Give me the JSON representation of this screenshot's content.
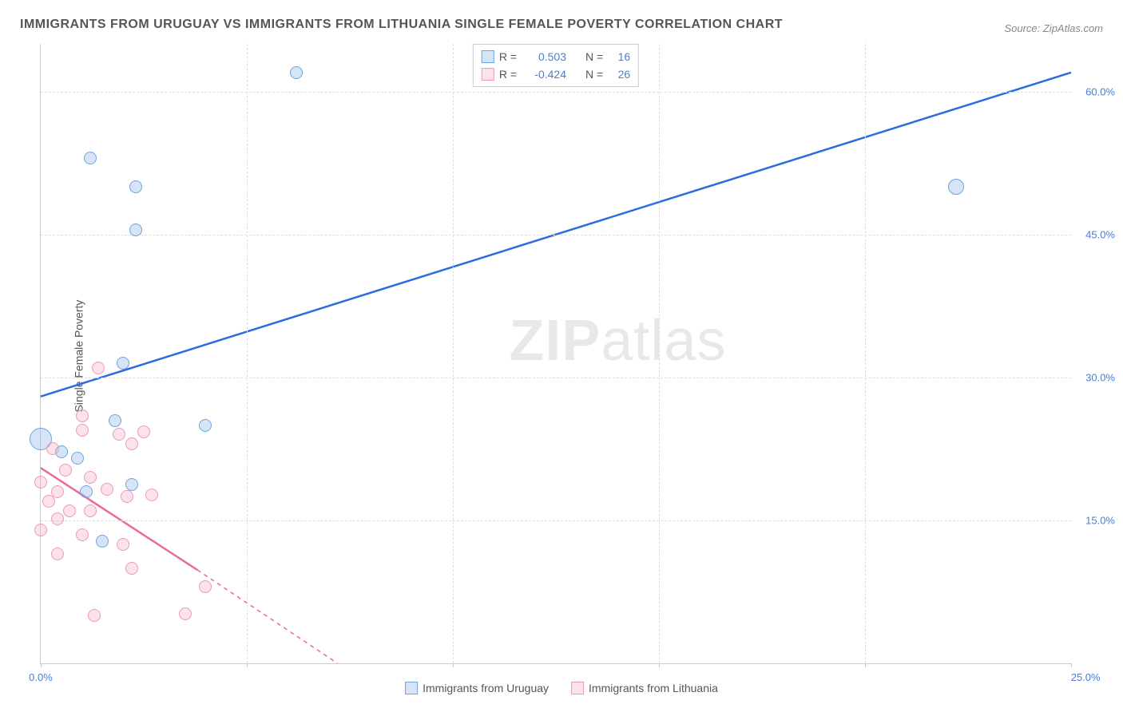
{
  "title": "IMMIGRANTS FROM URUGUAY VS IMMIGRANTS FROM LITHUANIA SINGLE FEMALE POVERTY CORRELATION CHART",
  "source": "Source: ZipAtlas.com",
  "watermark_bold": "ZIP",
  "watermark_light": "atlas",
  "chart": {
    "type": "scatter",
    "y_axis_title": "Single Female Poverty",
    "xlim": [
      0,
      25
    ],
    "ylim": [
      0,
      65
    ],
    "x_ticks": [
      0,
      5,
      10,
      15,
      20,
      25
    ],
    "x_tick_labels": [
      "0.0%",
      "",
      "",
      "",
      "",
      "25.0%"
    ],
    "y_ticks": [
      15,
      30,
      45,
      60
    ],
    "y_tick_labels": [
      "15.0%",
      "30.0%",
      "45.0%",
      "60.0%"
    ],
    "grid_color": "#dddddd",
    "background_color": "#ffffff",
    "series": [
      {
        "name": "Immigrants from Uruguay",
        "color_fill": "rgba(135,178,232,0.35)",
        "color_stroke": "#6fa3e0",
        "trend_color": "#2d6cdf",
        "R": "0.503",
        "N": "16",
        "trend": {
          "x1": 0,
          "y1": 28,
          "x2": 25,
          "y2": 62,
          "dash": false
        },
        "points": [
          {
            "x": 1.2,
            "y": 53,
            "r": 8
          },
          {
            "x": 2.3,
            "y": 50,
            "r": 8
          },
          {
            "x": 2.3,
            "y": 45.5,
            "r": 8
          },
          {
            "x": 6.2,
            "y": 62,
            "r": 8
          },
          {
            "x": 22.2,
            "y": 50,
            "r": 10
          },
          {
            "x": 2.0,
            "y": 31.5,
            "r": 8
          },
          {
            "x": 1.8,
            "y": 25.5,
            "r": 8
          },
          {
            "x": 0.0,
            "y": 23.5,
            "r": 14
          },
          {
            "x": 0.5,
            "y": 22.2,
            "r": 8
          },
          {
            "x": 0.9,
            "y": 21.5,
            "r": 8
          },
          {
            "x": 2.2,
            "y": 18.8,
            "r": 8
          },
          {
            "x": 4.0,
            "y": 25.0,
            "r": 8
          },
          {
            "x": 1.1,
            "y": 18.0,
            "r": 8
          },
          {
            "x": 1.5,
            "y": 12.8,
            "r": 8
          }
        ]
      },
      {
        "name": "Immigrants from Lithuania",
        "color_fill": "rgba(245,160,185,0.30)",
        "color_stroke": "#ec9bb4",
        "trend_color": "#e86a95",
        "R": "-0.424",
        "N": "26",
        "trend": {
          "x1": 0,
          "y1": 20.5,
          "x2": 3.8,
          "y2": 9.8,
          "dash_ext_x": 7.2,
          "dash_ext_y": 0
        },
        "points": [
          {
            "x": 1.4,
            "y": 31.0,
            "r": 8
          },
          {
            "x": 1.0,
            "y": 26.0,
            "r": 8
          },
          {
            "x": 1.0,
            "y": 24.5,
            "r": 8
          },
          {
            "x": 1.9,
            "y": 24.0,
            "r": 8
          },
          {
            "x": 0.3,
            "y": 22.5,
            "r": 8
          },
          {
            "x": 2.5,
            "y": 24.3,
            "r": 8
          },
          {
            "x": 0.6,
            "y": 20.3,
            "r": 8
          },
          {
            "x": 2.2,
            "y": 23.0,
            "r": 8
          },
          {
            "x": 0.0,
            "y": 19.0,
            "r": 8
          },
          {
            "x": 0.4,
            "y": 18.0,
            "r": 8
          },
          {
            "x": 1.2,
            "y": 19.5,
            "r": 8
          },
          {
            "x": 1.6,
            "y": 18.3,
            "r": 8
          },
          {
            "x": 2.1,
            "y": 17.5,
            "r": 8
          },
          {
            "x": 2.7,
            "y": 17.7,
            "r": 8
          },
          {
            "x": 0.2,
            "y": 17.0,
            "r": 8
          },
          {
            "x": 0.7,
            "y": 16.0,
            "r": 8
          },
          {
            "x": 0.4,
            "y": 15.2,
            "r": 8
          },
          {
            "x": 1.2,
            "y": 16.0,
            "r": 8
          },
          {
            "x": 0.0,
            "y": 14.0,
            "r": 8
          },
          {
            "x": 1.0,
            "y": 13.5,
            "r": 8
          },
          {
            "x": 2.0,
            "y": 12.5,
            "r": 8
          },
          {
            "x": 0.4,
            "y": 11.5,
            "r": 8
          },
          {
            "x": 2.2,
            "y": 10.0,
            "r": 8
          },
          {
            "x": 4.0,
            "y": 8.0,
            "r": 8
          },
          {
            "x": 1.3,
            "y": 5.0,
            "r": 8
          },
          {
            "x": 3.5,
            "y": 5.2,
            "r": 8
          }
        ]
      }
    ]
  },
  "legend_top": {
    "r_label": "R =",
    "n_label": "N ="
  }
}
